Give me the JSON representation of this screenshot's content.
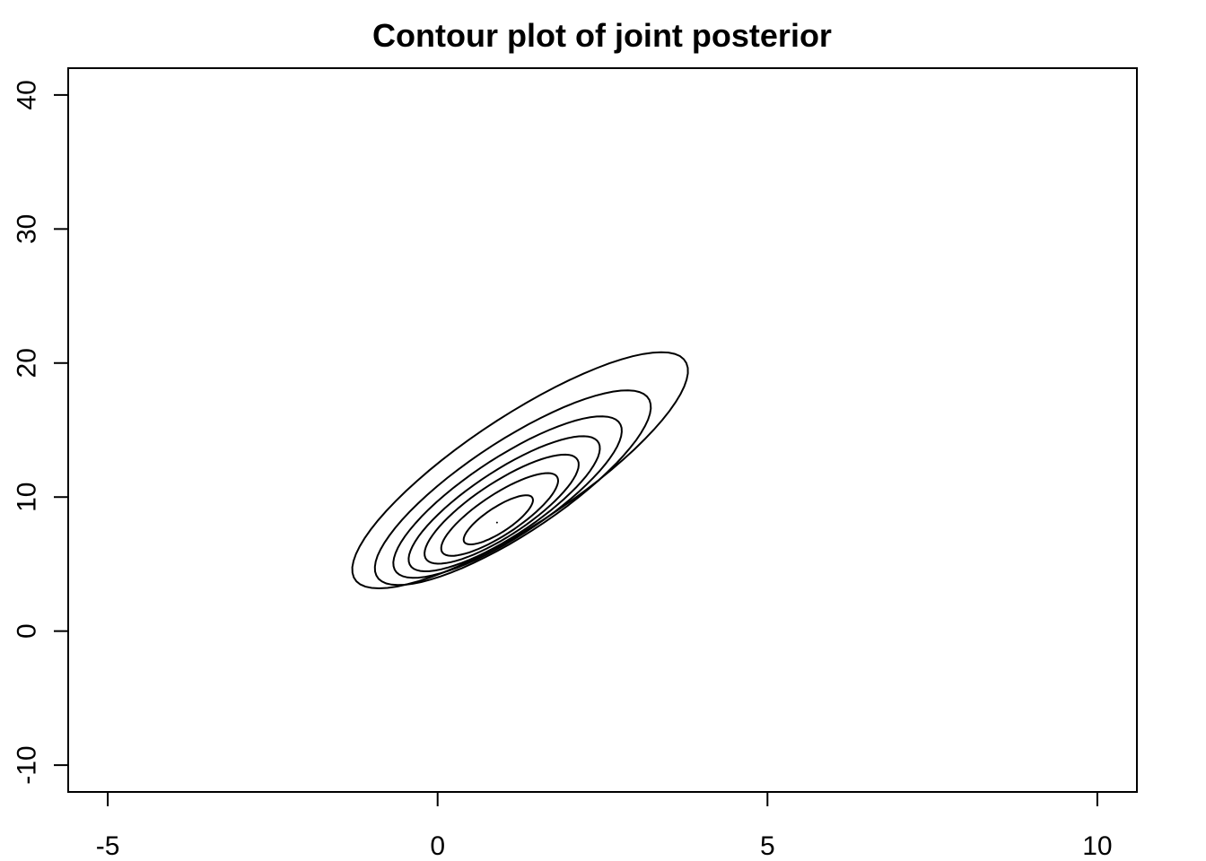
{
  "chart_data": {
    "type": "contour",
    "title": "Contour plot of joint posterior",
    "xlabel": "",
    "ylabel": "",
    "xlim": [
      -5.6,
      10.6
    ],
    "ylim": [
      -12,
      42
    ],
    "xticks": [
      -5,
      0,
      5,
      10
    ],
    "xtick_labels": [
      "-5",
      "0",
      "5",
      "10"
    ],
    "yticks": [
      -10,
      0,
      10,
      20,
      30,
      40
    ],
    "ytick_labels": [
      "-10",
      "0",
      "10",
      "20",
      "30",
      "40"
    ],
    "mode": {
      "x": 0.9,
      "y": 8.1
    },
    "contours": [
      {
        "level": 1,
        "cx": 1.25,
        "cy": 12.0,
        "semi_major": 3.17,
        "semi_minor": 0.91,
        "angle_deg": 38.5
      },
      {
        "level": 2,
        "cx": 1.14,
        "cy": 10.7,
        "semi_major": 2.6,
        "semi_minor": 0.78,
        "angle_deg": 38.5
      },
      {
        "level": 3,
        "cx": 1.06,
        "cy": 10.0,
        "semi_major": 2.15,
        "semi_minor": 0.66,
        "angle_deg": 38.5
      },
      {
        "level": 4,
        "cx": 1.01,
        "cy": 9.5,
        "semi_major": 1.8,
        "semi_minor": 0.55,
        "angle_deg": 38.5
      },
      {
        "level": 5,
        "cx": 0.97,
        "cy": 9.1,
        "semi_major": 1.45,
        "semi_minor": 0.45,
        "angle_deg": 38.5
      },
      {
        "level": 6,
        "cx": 0.94,
        "cy": 8.7,
        "semi_major": 1.1,
        "semi_minor": 0.34,
        "angle_deg": 38.5
      },
      {
        "level": 7,
        "cx": 0.92,
        "cy": 8.3,
        "semi_major": 0.65,
        "semi_minor": 0.21,
        "angle_deg": 38.5
      }
    ],
    "grid": false,
    "legend": "none"
  }
}
